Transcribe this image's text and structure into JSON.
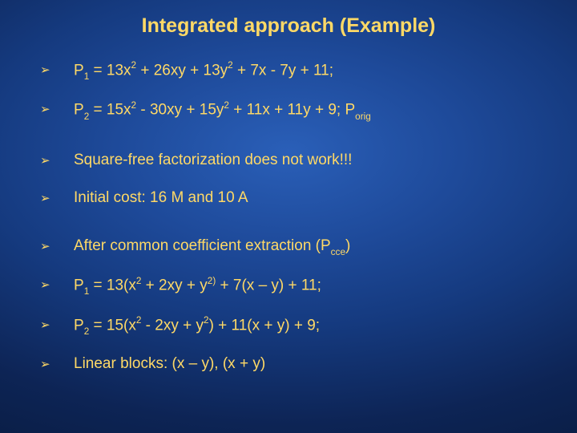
{
  "slide": {
    "title": "Integrated approach (Example)",
    "background_gradient": {
      "type": "radial",
      "stops": [
        "#2a5fb8",
        "#1e4a9a",
        "#153a7f",
        "#0d2455",
        "#071838"
      ]
    },
    "text_color": "#ffd966",
    "title_fontsize": 25,
    "body_fontsize": 19,
    "bullet_glyph": "➢",
    "bullets": [
      {
        "kind": "math",
        "parts": [
          {
            "t": "P"
          },
          {
            "t": "1",
            "sub": true
          },
          {
            "t": " = 13x"
          },
          {
            "t": "2",
            "sup": true
          },
          {
            "t": " + 26xy + 13y"
          },
          {
            "t": "2",
            "sup": true
          },
          {
            "t": " + 7x - 7y + 11;"
          }
        ],
        "gap_after": "md"
      },
      {
        "kind": "math",
        "parts": [
          {
            "t": "P"
          },
          {
            "t": "2",
            "sub": true
          },
          {
            "t": " = 15x"
          },
          {
            "t": "2",
            "sup": true
          },
          {
            "t": " - 30xy + 15y"
          },
          {
            "t": "2",
            "sup": true
          },
          {
            "t": " + 11x + 11y + 9; P"
          },
          {
            "t": "orig",
            "sub": true
          }
        ],
        "gap_after": "lg"
      },
      {
        "kind": "plain",
        "text": "Square-free factorization does not work!!!",
        "gap_after": "md"
      },
      {
        "kind": "plain",
        "text": "Initial cost: 16 M and 10 A",
        "gap_after": "lg"
      },
      {
        "kind": "math",
        "parts": [
          {
            "t": "After common coefficient extraction (P"
          },
          {
            "t": "cce",
            "sub": true
          },
          {
            "t": ")"
          }
        ],
        "gap_after": "md"
      },
      {
        "kind": "math",
        "parts": [
          {
            "t": "P"
          },
          {
            "t": "1",
            "sub": true
          },
          {
            "t": " = 13(x"
          },
          {
            "t": "2",
            "sup": true
          },
          {
            "t": " + 2xy + y"
          },
          {
            "t": "2)",
            "sup": true
          },
          {
            "t": " + 7(x – y) + 11;"
          }
        ],
        "gap_after": "md"
      },
      {
        "kind": "math",
        "parts": [
          {
            "t": "P"
          },
          {
            "t": "2",
            "sub": true
          },
          {
            "t": " = 15(x"
          },
          {
            "t": "2",
            "sup": true
          },
          {
            "t": " - 2xy + y"
          },
          {
            "t": "2",
            "sup": true
          },
          {
            "t": ") + 11(x + y) + 9;"
          }
        ],
        "gap_after": "md"
      },
      {
        "kind": "plain",
        "text": "Linear blocks: (x – y), (x + y)",
        "gap_after": null
      }
    ]
  }
}
